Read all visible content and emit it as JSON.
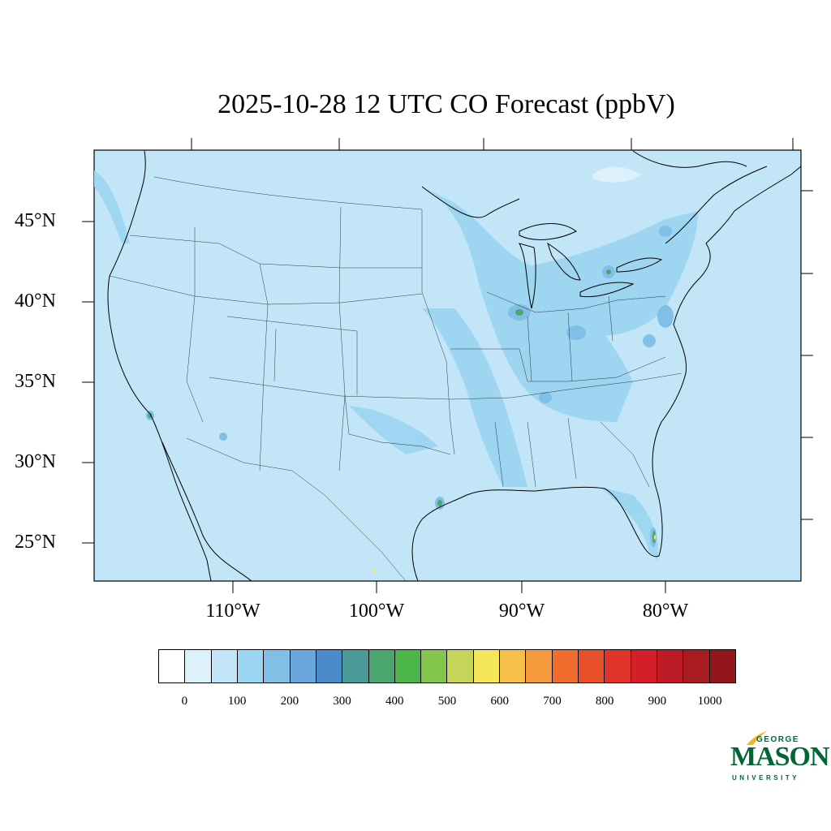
{
  "title": "2025-10-28 12 UTC CO Forecast (ppbV)",
  "map": {
    "background_color": "#c2e5f7",
    "lat_labels": [
      "45°N",
      "40°N",
      "35°N",
      "30°N",
      "25°N"
    ],
    "lon_labels": [
      "110°W",
      "100°W",
      "90°W",
      "80°W"
    ]
  },
  "colorbar": {
    "colors": [
      "#ffffff",
      "#ddf1fb",
      "#c2e5f7",
      "#9dd6f2",
      "#82bfe6",
      "#6aa6dc",
      "#4a8ac9",
      "#4a9a9a",
      "#48a66e",
      "#4bb54a",
      "#84c54c",
      "#c4d55a",
      "#f6e65a",
      "#f6bf4a",
      "#f59a3c",
      "#f26c2d",
      "#e8502a",
      "#e0352a",
      "#d21f2a",
      "#bd1b25",
      "#a81b20",
      "#93161c"
    ],
    "labels": [
      "0",
      "100",
      "200",
      "300",
      "400",
      "500",
      "600",
      "700",
      "800",
      "900",
      "1000"
    ]
  },
  "logo": {
    "line1": "GEORGE",
    "line2": "MASON",
    "line3": "UNIVERSITY"
  }
}
